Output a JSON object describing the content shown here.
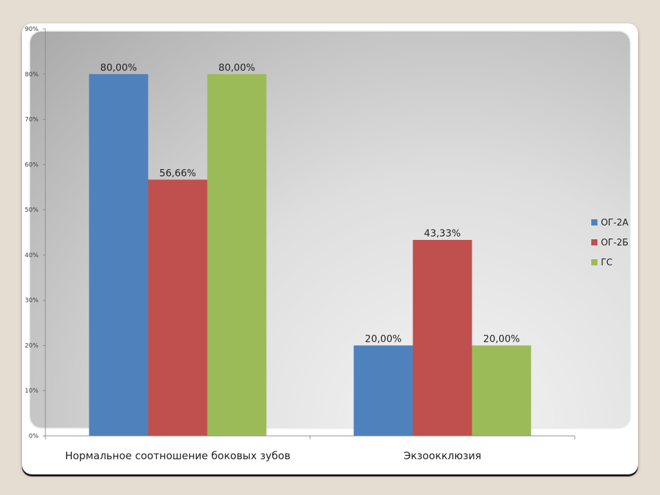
{
  "chart_data": {
    "type": "bar",
    "title": "",
    "xlabel": "",
    "ylabel": "",
    "categories": [
      "Нормальное соотношение боковых зубов",
      "Экзоокклюзия"
    ],
    "series": [
      {
        "name": "ОГ-2А",
        "color": "#4f81bd",
        "values": [
          80.0,
          20.0
        ],
        "labels": [
          "80,00%",
          "20,00%"
        ]
      },
      {
        "name": "ОГ-2Б",
        "color": "#c0504d",
        "values": [
          56.66,
          43.33
        ],
        "labels": [
          "56,66%",
          "43,33%"
        ]
      },
      {
        "name": "ГС",
        "color": "#9bbb59",
        "values": [
          80.0,
          20.0
        ],
        "labels": [
          "80,00%",
          "20,00%"
        ]
      }
    ],
    "ylim": [
      0,
      90
    ],
    "yticks": [
      0,
      10,
      20,
      30,
      40,
      50,
      60,
      70,
      80,
      90
    ],
    "ytick_labels": [
      "0%",
      "10%",
      "20%",
      "30%",
      "40%",
      "50%",
      "60%",
      "70%",
      "80%",
      "90%"
    ],
    "grid": false,
    "legend_position": "right"
  }
}
